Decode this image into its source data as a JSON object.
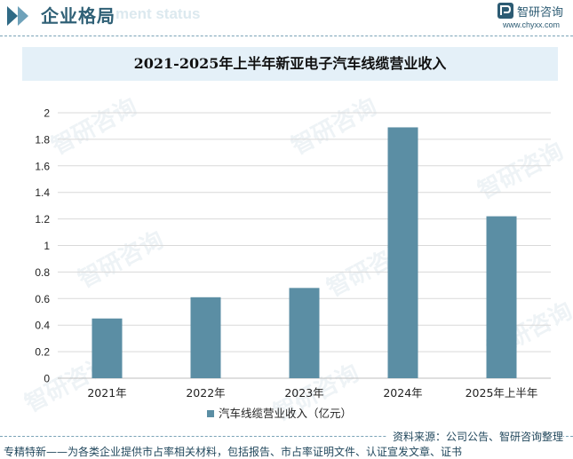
{
  "header": {
    "section_title": "企业格局",
    "background_text": "ment status",
    "brand_name": "智研咨询",
    "brand_url": "www.chyxx.com"
  },
  "watermark_text": "智研咨询",
  "chart_data": {
    "type": "bar",
    "title": "2021-2025年上半年新亚电子汽车线缆营业收入",
    "categories": [
      "2021年",
      "2022年",
      "2023年",
      "2024年",
      "2025年上半年"
    ],
    "series": [
      {
        "name": "汽车线缆营业收入（亿元）",
        "values": [
          0.45,
          0.61,
          0.68,
          1.89,
          1.22
        ]
      }
    ],
    "ylim": [
      0,
      2
    ],
    "yticks": [
      "0",
      "0.2",
      "0.4",
      "0.6",
      "0.8",
      "1",
      "1.2",
      "1.4",
      "1.6",
      "1.8",
      "2"
    ],
    "grid": true,
    "legend": "bottom",
    "colors": {
      "bar": "#5b8ea4",
      "grid": "#d9d9d9",
      "axis": "#bfbfbf"
    }
  },
  "footer": {
    "source": "资料来源：公司公告、智研咨询整理",
    "note": "专精特新——为各类企业提供市占率相关材料，包括报告、市占率证明文件、认证宣发文章、证书"
  }
}
